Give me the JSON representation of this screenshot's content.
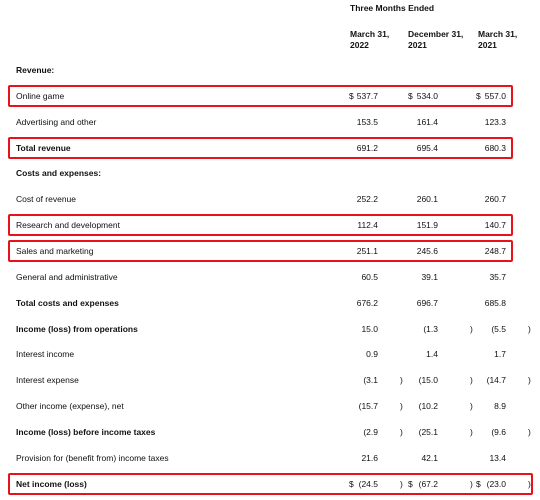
{
  "table": {
    "group_header": "Three Months Ended",
    "columns": [
      [
        "March 31,",
        "2022"
      ],
      [
        "December 31,",
        "2021"
      ],
      [
        "March 31,",
        "2021"
      ]
    ],
    "rows": [
      {
        "label": "Revenue:",
        "bold": true
      },
      {
        "label": "Online game",
        "highlighted": true,
        "cells": [
          {
            "pre": "$",
            "val": "537.7"
          },
          {
            "pre": "$",
            "val": "534.0"
          },
          {
            "pre": "$",
            "val": "557.0"
          }
        ]
      },
      {
        "label": "Advertising and other",
        "cells": [
          {
            "val": "153.5"
          },
          {
            "val": "161.4"
          },
          {
            "val": "123.3"
          }
        ]
      },
      {
        "label": "Total revenue",
        "bold": true,
        "highlighted": true,
        "cells": [
          {
            "val": "691.2"
          },
          {
            "val": "695.4"
          },
          {
            "val": "680.3"
          }
        ]
      },
      {
        "label": "Costs and expenses:",
        "bold": true
      },
      {
        "label": "Cost of revenue",
        "cells": [
          {
            "val": "252.2"
          },
          {
            "val": "260.1"
          },
          {
            "val": "260.7"
          }
        ]
      },
      {
        "label": "Research and development",
        "highlighted": true,
        "cells": [
          {
            "val": "112.4"
          },
          {
            "val": "151.9"
          },
          {
            "val": "140.7"
          }
        ]
      },
      {
        "label": "Sales and marketing",
        "highlighted": true,
        "cells": [
          {
            "val": "251.1"
          },
          {
            "val": "245.6"
          },
          {
            "val": "248.7"
          }
        ]
      },
      {
        "label": "General and administrative",
        "cells": [
          {
            "val": "60.5"
          },
          {
            "val": "39.1"
          },
          {
            "val": "35.7"
          }
        ]
      },
      {
        "label": "Total costs and expenses",
        "bold": true,
        "cells": [
          {
            "val": "676.2"
          },
          {
            "val": "696.7"
          },
          {
            "val": "685.8"
          }
        ]
      },
      {
        "label": "Income (loss) from operations",
        "bold": true,
        "cells": [
          {
            "val": "15.0"
          },
          {
            "val": "(1.3",
            "post": ")"
          },
          {
            "val": "(5.5",
            "post": ")"
          }
        ]
      },
      {
        "label": "Interest income",
        "cells": [
          {
            "val": "0.9"
          },
          {
            "val": "1.4"
          },
          {
            "val": "1.7"
          }
        ]
      },
      {
        "label": "Interest expense",
        "cells": [
          {
            "val": "(3.1",
            "post": ")"
          },
          {
            "val": "(15.0",
            "post": ")"
          },
          {
            "val": "(14.7",
            "post": ")"
          }
        ]
      },
      {
        "label": "Other income (expense), net",
        "cells": [
          {
            "val": "(15.7",
            "post": ")"
          },
          {
            "val": "(10.2",
            "post": ")"
          },
          {
            "val": "8.9"
          }
        ]
      },
      {
        "label": "Income (loss) before income taxes",
        "bold": true,
        "cells": [
          {
            "val": "(2.9",
            "post": ")"
          },
          {
            "val": "(25.1",
            "post": ")"
          },
          {
            "val": "(9.6",
            "post": ")"
          }
        ]
      },
      {
        "label": "Provision for (benefit from) income taxes",
        "cells": [
          {
            "val": "21.6"
          },
          {
            "val": "42.1"
          },
          {
            "val": "13.4"
          }
        ]
      },
      {
        "label": "Net income (loss)",
        "bold": true,
        "highlighted": true,
        "cells": [
          {
            "pre": "$",
            "val": "(24.5",
            "post": ")"
          },
          {
            "pre": "$",
            "val": "(67.2",
            "post": ")"
          },
          {
            "pre": "$",
            "val": "(23.0",
            "post": ")"
          }
        ]
      }
    ]
  }
}
